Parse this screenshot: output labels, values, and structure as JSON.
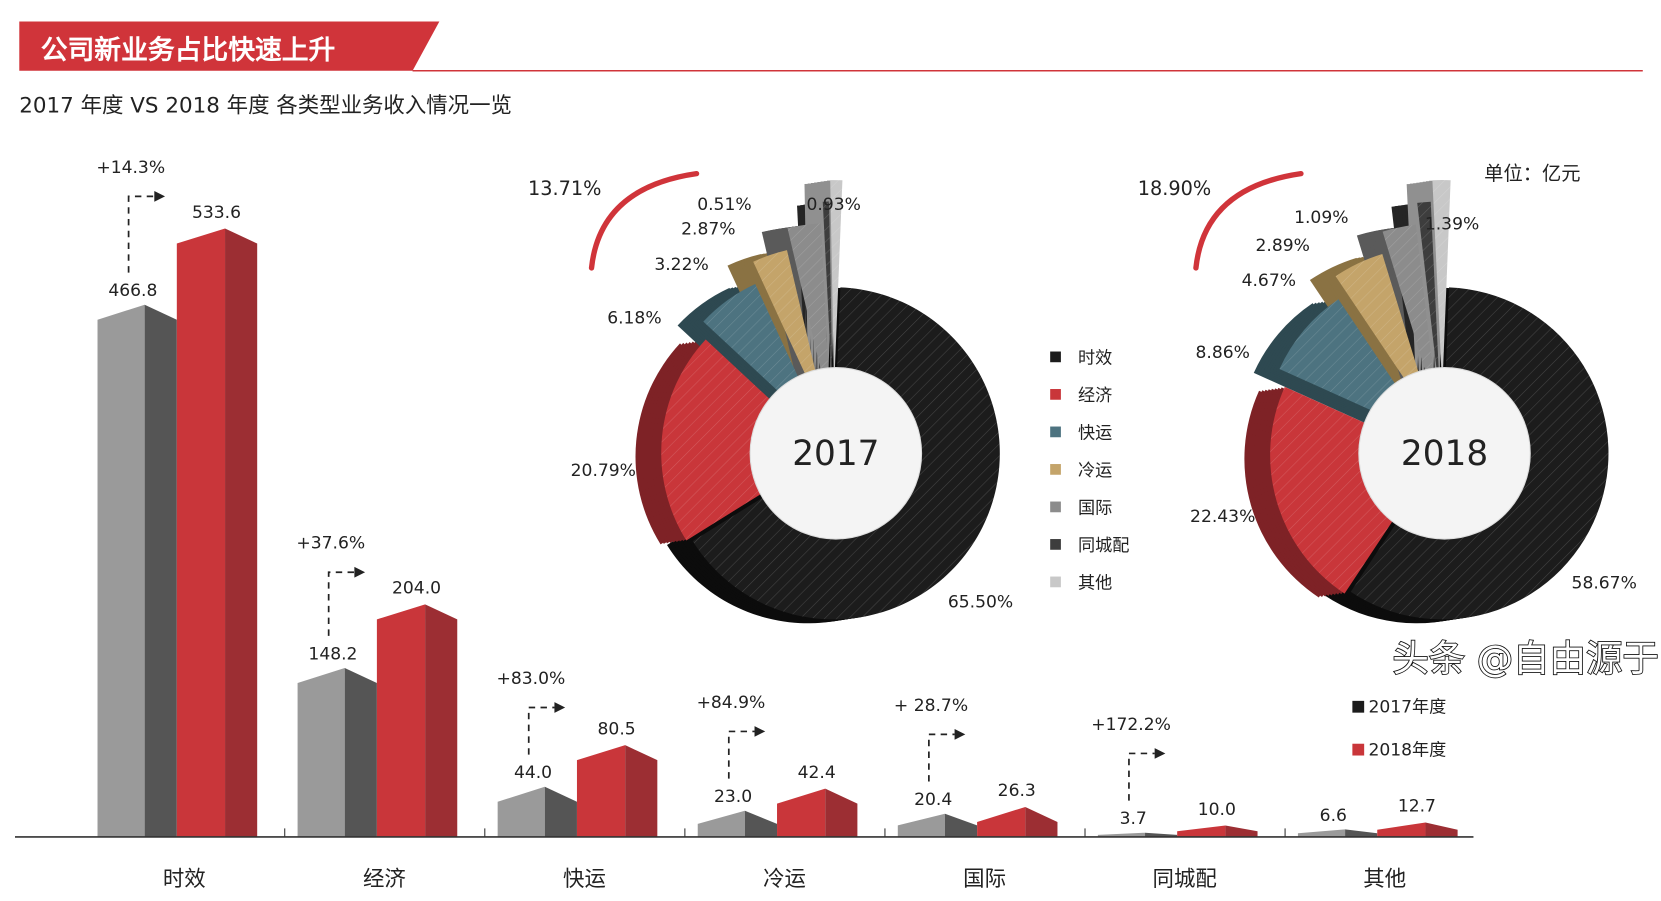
{
  "header": {
    "banner_title": "公司新业务占比快速上升",
    "subtitle": "2017 年度 VS 2018 年度 各类型业务收入情况一览",
    "unit": "单位：亿元"
  },
  "watermark": "头条 @自由源于",
  "colors": {
    "accent": "#d0343a",
    "y2017_bar": "#9a9a9a",
    "y2018_bar": "#c9363a",
    "slices": [
      "#1c1c1c",
      "#c9363a",
      "#4d7380",
      "#c4a46a",
      "#8c8c8c",
      "#3d3d3d",
      "#c8c8c8"
    ]
  },
  "chart_data": [
    {
      "type": "bar",
      "categories": [
        "时效",
        "经济",
        "快运",
        "冷运",
        "国际",
        "同城配",
        "其他"
      ],
      "series": [
        {
          "name": "2017年度",
          "values": [
            466.8,
            148.2,
            44.0,
            23.0,
            20.4,
            3.7,
            6.6
          ]
        },
        {
          "name": "2018年度",
          "values": [
            533.6,
            204.0,
            80.5,
            42.4,
            26.3,
            10.0,
            12.7
          ]
        }
      ],
      "value_labels": {
        "2017": [
          "466.8",
          "148.2",
          "44.0",
          "23.0",
          "20.4",
          "3.7",
          "6.6"
        ],
        "2018": [
          "533.6",
          "204.0",
          "80.5",
          "42.4",
          "26.3",
          "10.0",
          "12.7"
        ]
      },
      "growth_labels": [
        "+14.3%",
        "+37.6%",
        "+83.0%",
        "+84.9%",
        "+ 28.7%",
        "+172.2%",
        ""
      ],
      "legend": [
        "2017年度",
        "2018年度"
      ],
      "legend_placement": "right",
      "unit": "单位：亿元",
      "grid": false
    },
    {
      "type": "pie",
      "style": "3d-donut",
      "center_label": "2017",
      "categories": [
        "时效",
        "经济",
        "快运",
        "冷运",
        "国际",
        "同城配",
        "其他"
      ],
      "values": [
        65.5,
        20.79,
        6.18,
        3.22,
        2.87,
        0.51,
        0.93
      ],
      "labels": [
        "65.50%",
        "20.79%",
        "6.18%",
        "3.22%",
        "2.87%",
        "0.51%",
        "0.93%"
      ],
      "new_business_share": "13.71%"
    },
    {
      "type": "pie",
      "style": "3d-donut",
      "center_label": "2018",
      "categories": [
        "时效",
        "经济",
        "快运",
        "冷运",
        "国际",
        "同城配",
        "其他"
      ],
      "values": [
        58.67,
        22.43,
        8.86,
        4.67,
        2.89,
        1.09,
        1.39
      ],
      "labels": [
        "58.67%",
        "22.43%",
        "8.86%",
        "4.67%",
        "2.89%",
        "1.09%",
        "1.39%"
      ],
      "new_business_share": "18.90%"
    }
  ],
  "pie_legend": [
    "时效",
    "经济",
    "快运",
    "冷运",
    "国际",
    "同城配",
    "其他"
  ]
}
